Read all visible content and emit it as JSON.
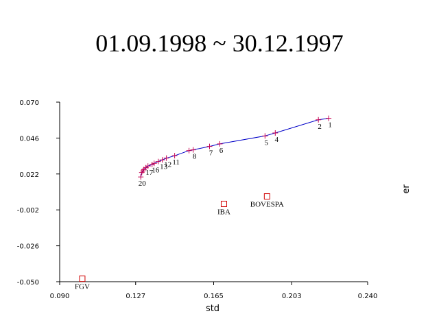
{
  "chart_data": {
    "type": "line",
    "title": "01.09.1998 ~ 30.12.1997",
    "xlabel": "std",
    "ylabel": "er",
    "xlim": [
      0.09,
      0.24
    ],
    "ylim": [
      -0.05,
      0.07
    ],
    "xticks": [
      "0.090",
      "0.127",
      "0.165",
      "0.203",
      "0.240"
    ],
    "yticks": [
      "0.070",
      "0.046",
      "0.022",
      "-0.002",
      "-0.026",
      "-0.050"
    ],
    "grid": false,
    "line_color": "#0000c8",
    "marker_color": "#c80050",
    "frontier": {
      "x": [
        0.221,
        0.216,
        0.195,
        0.19,
        0.168,
        0.163,
        0.155,
        0.153,
        0.146,
        0.142,
        0.14,
        0.138,
        0.136,
        0.135,
        0.133,
        0.132,
        0.131,
        0.1305,
        0.13,
        0.1295
      ],
      "y": [
        0.0592,
        0.0582,
        0.0494,
        0.0474,
        0.0421,
        0.0404,
        0.0381,
        0.0376,
        0.0342,
        0.0326,
        0.0314,
        0.0303,
        0.0291,
        0.0283,
        0.0273,
        0.0262,
        0.025,
        0.024,
        0.023,
        0.02
      ],
      "labels": [
        "1",
        "2",
        "4",
        "5",
        "6",
        "7",
        "8",
        "",
        "11",
        "12",
        "13",
        "",
        "16",
        "",
        "17",
        "",
        "",
        "",
        "",
        "20"
      ]
    },
    "assets": [
      {
        "name": "FGV",
        "x": 0.101,
        "y": -0.048
      },
      {
        "name": "IBA",
        "x": 0.17,
        "y": 0.002
      },
      {
        "name": "BOVESPA",
        "x": 0.191,
        "y": 0.007
      }
    ],
    "asset_color": "#d00000"
  }
}
